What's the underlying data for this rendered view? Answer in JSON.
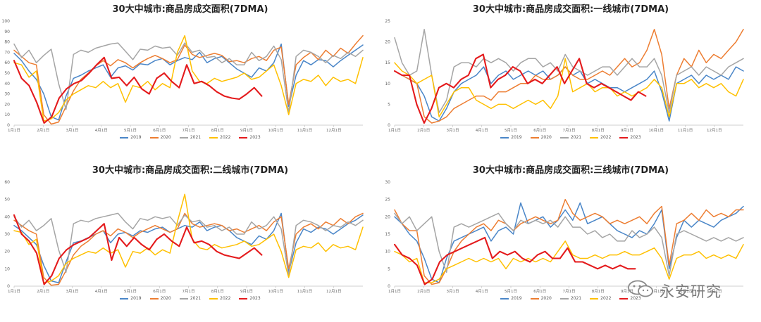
{
  "watermark": {
    "text": "永安研究",
    "logo_icon": "wechat-bubble-icon"
  },
  "colors": {
    "2019": "#4a86c8",
    "2020": "#ed7d31",
    "2021": "#a5a5a5",
    "2022": "#ffc000",
    "2023": "#e41a1c"
  },
  "chart_data": [
    {
      "type": "line",
      "title": "30大中城市:商品房成交面积(7DMA)",
      "ylim": [
        0,
        100
      ],
      "yticks": [
        0,
        10,
        20,
        30,
        40,
        50,
        60,
        70,
        80,
        90,
        100
      ],
      "xticks": [
        "1月1日",
        "2月1日",
        "3月1日",
        "4月1日",
        "5月1日",
        "6月1日",
        "7月1日",
        "8月1日",
        "9月1日",
        "10月1日",
        "11月1日",
        "12月1日"
      ],
      "legend": "bottom",
      "grid": false,
      "series": [
        {
          "name": "2019",
          "end": 1.0,
          "values": [
            69,
            62,
            52,
            44,
            30,
            8,
            5,
            28,
            45,
            48,
            52,
            55,
            58,
            46,
            55,
            57,
            53,
            59,
            58,
            62,
            64,
            58,
            62,
            65,
            63,
            70,
            60,
            64,
            66,
            60,
            54,
            50,
            46,
            55,
            52,
            60,
            78,
            18,
            48,
            62,
            58,
            63,
            62,
            56,
            62,
            67,
            72,
            77
          ]
        },
        {
          "name": "2020",
          "end": 1.0,
          "values": [
            72,
            66,
            60,
            58,
            10,
            1,
            3,
            18,
            33,
            44,
            50,
            57,
            62,
            57,
            63,
            60,
            55,
            60,
            64,
            67,
            64,
            60,
            63,
            77,
            68,
            65,
            67,
            69,
            67,
            61,
            62,
            60,
            64,
            66,
            62,
            72,
            75,
            20,
            58,
            65,
            70,
            63,
            72,
            66,
            74,
            69,
            78,
            86
          ]
        },
        {
          "name": "2021",
          "end": 1.0,
          "values": [
            78,
            65,
            72,
            60,
            67,
            73,
            40,
            15,
            68,
            72,
            70,
            74,
            76,
            78,
            79,
            71,
            63,
            73,
            72,
            76,
            74,
            75,
            67,
            79,
            70,
            72,
            65,
            66,
            60,
            64,
            58,
            58,
            70,
            62,
            66,
            76,
            63,
            12,
            66,
            72,
            70,
            66,
            60,
            67,
            64,
            70,
            66,
            72
          ]
        },
        {
          "name": "2022",
          "end": 1.0,
          "values": [
            60,
            58,
            46,
            52,
            4,
            6,
            12,
            24,
            30,
            34,
            38,
            36,
            42,
            36,
            40,
            22,
            38,
            36,
            42,
            34,
            40,
            36,
            70,
            86,
            52,
            42,
            40,
            45,
            42,
            44,
            46,
            50,
            44,
            46,
            52,
            58,
            38,
            10,
            40,
            44,
            42,
            48,
            38,
            46,
            42,
            44,
            40,
            65
          ]
        },
        {
          "name": "2023",
          "end": 0.71,
          "values": [
            62,
            45,
            38,
            22,
            2,
            8,
            26,
            35,
            40,
            43,
            50,
            58,
            65,
            45,
            46,
            38,
            46,
            35,
            30,
            45,
            50,
            42,
            36,
            58,
            40,
            42,
            38,
            32,
            28,
            26,
            25,
            30,
            36,
            28
          ]
        }
      ]
    },
    {
      "type": "line",
      "title": "30大中城市:商品房成交面积:一线城市(7DMA)",
      "ylim": [
        0,
        25
      ],
      "yticks": [
        0,
        5,
        10,
        15,
        20,
        25
      ],
      "xticks": [
        "1月1日",
        "2月1日",
        "3月1日",
        "4月1日",
        "5月1日",
        "6月1日",
        "7月1日",
        "8月1日",
        "9月1日",
        "10月1日",
        "11月1日",
        "12月1日"
      ],
      "legend": "bottom",
      "grid": false,
      "series": [
        {
          "name": "2019",
          "end": 1.0,
          "values": [
            13,
            12,
            11,
            10,
            7,
            2,
            1,
            4,
            8,
            10,
            11,
            12,
            14,
            10,
            12,
            13,
            11,
            12,
            13,
            12,
            13,
            11,
            12,
            14,
            12,
            13,
            10,
            11,
            10,
            9,
            9,
            8,
            9,
            10,
            11,
            13,
            8,
            1,
            10,
            11,
            12,
            10,
            12,
            11,
            12,
            11,
            14,
            13
          ]
        },
        {
          "name": "2020",
          "end": 1.0,
          "values": [
            13,
            12,
            11,
            10,
            2,
            0.5,
            1,
            2,
            4,
            5,
            6,
            7,
            7,
            6,
            8,
            8,
            9,
            10,
            10,
            12,
            11,
            11,
            12,
            14,
            12,
            11,
            11,
            12,
            13,
            12,
            14,
            16,
            14,
            15,
            18,
            23,
            17,
            4,
            12,
            16,
            14,
            18,
            15,
            17,
            16,
            18,
            20,
            23
          ]
        },
        {
          "name": "2021",
          "end": 1.0,
          "values": [
            21,
            15,
            12,
            13,
            23,
            12,
            3,
            6,
            14,
            15,
            15,
            14,
            16,
            15,
            16,
            15,
            13,
            15,
            16,
            16,
            14,
            15,
            13,
            17,
            14,
            13,
            12,
            13,
            14,
            14,
            12,
            14,
            16,
            14,
            14,
            16,
            12,
            3,
            12,
            13,
            14,
            12,
            14,
            13,
            12,
            14,
            15,
            16
          ]
        },
        {
          "name": "2022",
          "end": 1.0,
          "values": [
            15,
            13,
            12,
            10,
            11,
            12,
            2,
            5,
            8,
            9,
            9,
            6,
            5,
            4,
            5,
            5,
            4,
            5,
            6,
            5,
            6,
            4,
            7,
            16,
            8,
            9,
            10,
            8,
            9,
            9,
            7,
            8,
            7,
            8,
            9,
            11,
            9,
            2,
            10,
            10,
            11,
            9,
            10,
            9,
            10,
            8,
            7,
            11
          ]
        },
        {
          "name": "2023",
          "end": 0.72,
          "values": [
            13,
            12,
            12,
            5,
            0.5,
            4,
            9,
            10,
            9,
            11,
            12,
            16,
            17,
            9,
            11,
            12,
            14,
            13,
            10,
            11,
            10,
            12,
            14,
            10,
            13,
            16,
            10,
            9,
            10,
            9,
            8,
            7,
            6,
            8,
            7
          ]
        }
      ]
    },
    {
      "type": "line",
      "title": "30大中城市:商品房成交面积:二线城市(7DMA)",
      "ylim": [
        0,
        60
      ],
      "yticks": [
        0,
        10,
        20,
        30,
        40,
        50,
        60
      ],
      "xticks": [
        "1月1日",
        "2月1日",
        "3月1日",
        "4月1日",
        "5月1日",
        "6月1日",
        "7月1日",
        "8月1日",
        "9月1日",
        "10月1日",
        "11月1日",
        "12月1日"
      ],
      "legend": "bottom",
      "grid": false,
      "series": [
        {
          "name": "2019",
          "end": 1.0,
          "values": [
            35,
            32,
            28,
            24,
            12,
            3,
            2,
            14,
            25,
            26,
            28,
            30,
            32,
            25,
            30,
            31,
            29,
            32,
            31,
            33,
            34,
            31,
            33,
            35,
            34,
            37,
            32,
            34,
            35,
            32,
            28,
            26,
            24,
            29,
            27,
            32,
            42,
            8,
            25,
            33,
            31,
            34,
            33,
            30,
            33,
            36,
            38,
            41
          ]
        },
        {
          "name": "2020",
          "end": 1.0,
          "values": [
            38,
            35,
            32,
            30,
            5,
            0.5,
            1,
            9,
            18,
            23,
            26,
            30,
            32,
            29,
            33,
            31,
            28,
            31,
            33,
            35,
            33,
            31,
            33,
            42,
            36,
            34,
            35,
            36,
            35,
            32,
            33,
            31,
            33,
            35,
            32,
            37,
            40,
            10,
            30,
            34,
            36,
            33,
            37,
            35,
            39,
            36,
            40,
            42
          ]
        },
        {
          "name": "2021",
          "end": 1.0,
          "values": [
            40,
            34,
            38,
            32,
            35,
            39,
            21,
            8,
            36,
            38,
            37,
            39,
            40,
            41,
            42,
            37,
            33,
            39,
            38,
            40,
            39,
            40,
            35,
            41,
            37,
            38,
            34,
            35,
            32,
            34,
            30,
            30,
            37,
            33,
            35,
            40,
            33,
            6,
            35,
            38,
            37,
            35,
            32,
            35,
            34,
            37,
            35,
            38
          ]
        },
        {
          "name": "2022",
          "end": 1.0,
          "values": [
            32,
            31,
            24,
            27,
            2,
            3,
            6,
            13,
            16,
            18,
            20,
            19,
            22,
            19,
            21,
            11,
            20,
            19,
            22,
            18,
            21,
            19,
            37,
            53,
            27,
            22,
            21,
            24,
            22,
            23,
            24,
            26,
            23,
            24,
            27,
            30,
            20,
            5,
            21,
            23,
            22,
            25,
            20,
            24,
            22,
            23,
            21,
            34
          ]
        },
        {
          "name": "2023",
          "end": 0.71,
          "values": [
            41,
            30,
            26,
            19,
            1,
            6,
            16,
            21,
            24,
            26,
            28,
            32,
            36,
            15,
            28,
            23,
            28,
            24,
            21,
            27,
            30,
            26,
            23,
            34,
            25,
            26,
            24,
            20,
            18,
            17,
            16,
            19,
            22,
            18
          ]
        }
      ]
    },
    {
      "type": "line",
      "title": "30大中城市:商品房成交面积:三线城市(7DMA)",
      "ylim": [
        0,
        30
      ],
      "yticks": [
        0,
        5,
        10,
        15,
        20,
        25,
        30
      ],
      "xticks": [
        "1月1日",
        "2月1日",
        "3月1日",
        "4月1日",
        "5月1日",
        "6月1日",
        "7月1日",
        "8月1日",
        "9月1日",
        "10月1日",
        "11月1日",
        "12月1日"
      ],
      "legend": "bottom",
      "grid": false,
      "series": [
        {
          "name": "2019",
          "end": 1.0,
          "values": [
            20,
            18,
            15,
            13,
            8,
            2,
            1,
            8,
            13,
            14,
            15,
            16,
            17,
            13,
            16,
            17,
            15,
            24,
            18,
            19,
            20,
            17,
            19,
            22,
            19,
            24,
            18,
            19,
            20,
            18,
            16,
            15,
            14,
            16,
            15,
            18,
            22,
            5,
            14,
            19,
            17,
            19,
            18,
            17,
            19,
            20,
            21,
            23
          ]
        },
        {
          "name": "2020",
          "end": 1.0,
          "values": [
            22,
            18,
            16,
            16,
            3,
            0.5,
            1,
            5,
            10,
            13,
            15,
            17,
            18,
            16,
            19,
            18,
            16,
            18,
            19,
            20,
            19,
            18,
            19,
            25,
            21,
            19,
            20,
            21,
            20,
            18,
            19,
            18,
            19,
            20,
            18,
            21,
            23,
            6,
            18,
            19,
            21,
            19,
            22,
            20,
            21,
            20,
            22,
            22
          ]
        },
        {
          "name": "2021",
          "end": 1.0,
          "values": [
            21,
            18,
            20,
            16,
            18,
            20,
            10,
            4,
            17,
            18,
            17,
            18,
            19,
            20,
            21,
            18,
            16,
            19,
            18,
            19,
            18,
            19,
            17,
            20,
            17,
            17,
            15,
            16,
            14,
            15,
            13,
            13,
            16,
            14,
            15,
            17,
            14,
            3,
            15,
            16,
            15,
            14,
            13,
            14,
            13,
            14,
            13,
            14
          ]
        },
        {
          "name": "2022",
          "end": 1.0,
          "values": [
            10,
            9,
            7,
            8,
            1,
            1,
            2,
            5,
            6,
            7,
            8,
            7,
            8,
            7,
            8,
            5,
            8,
            7,
            8,
            7,
            8,
            7,
            10,
            13,
            9,
            8,
            8,
            9,
            8,
            9,
            9,
            10,
            9,
            9,
            10,
            11,
            8,
            2,
            8,
            9,
            9,
            10,
            8,
            9,
            8,
            9,
            8,
            12
          ]
        },
        {
          "name": "2023",
          "end": 0.69,
          "values": [
            12,
            9,
            8,
            6,
            0.5,
            2,
            7,
            9,
            10,
            11,
            12,
            13,
            14,
            8,
            10,
            9,
            10,
            8,
            7,
            9,
            10,
            8,
            8,
            11,
            7,
            7,
            6,
            5,
            6,
            5,
            6,
            5,
            5
          ]
        }
      ]
    }
  ]
}
